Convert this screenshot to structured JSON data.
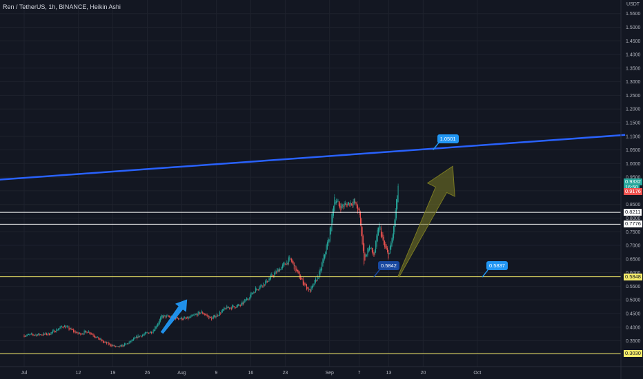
{
  "header": {
    "symbol_title": "Ren / TetherUS, 1h, BINANCE, Heikin Ashi",
    "currency": "USDT"
  },
  "colors": {
    "background": "#131722",
    "grid": "#1e222d",
    "up": "#26a69a",
    "down": "#ef5350",
    "trendline": "#2962ff",
    "white_line": "#ffffff",
    "yellow_line": "#f5ec6a",
    "arrow_blue": "#2196f3",
    "arrow_olive": "#7a7a22",
    "callout_blue": "#2196f3",
    "callout_navy": "#1848a0",
    "last_price_teal": "#26a69a",
    "last_price_red": "#ef5350"
  },
  "chart_data": {
    "type": "candlestick",
    "style": "Heikin Ashi",
    "interval": "1h",
    "exchange": "BINANCE",
    "y_axis": {
      "ticks": [
        "0.3000",
        "0.3500",
        "0.4000",
        "0.4500",
        "0.5000",
        "0.5500",
        "0.6000",
        "0.6500",
        "0.7000",
        "0.7500",
        "0.8000",
        "0.8500",
        "0.9000",
        "0.9500",
        "1.0000",
        "1.0500",
        "1.1000",
        "1.1500",
        "1.2000",
        "1.2500",
        "1.3000",
        "1.3500",
        "1.4000",
        "1.4500",
        "1.5000",
        "1.5500"
      ],
      "range": [
        0.27,
        1.58
      ]
    },
    "x_axis": {
      "ticks": [
        "Jul",
        "12",
        "19",
        "26",
        "Aug",
        "9",
        "16",
        "23",
        "Sep",
        "7",
        "13",
        "20",
        "Oct"
      ]
    },
    "price_path": [
      {
        "date": "2021-07-01",
        "price": 0.37
      },
      {
        "date": "2021-07-06",
        "price": 0.375
      },
      {
        "date": "2021-07-09",
        "price": 0.405
      },
      {
        "date": "2021-07-12",
        "price": 0.375
      },
      {
        "date": "2021-07-14",
        "price": 0.385
      },
      {
        "date": "2021-07-17",
        "price": 0.345
      },
      {
        "date": "2021-07-20",
        "price": 0.325
      },
      {
        "date": "2021-07-22",
        "price": 0.34
      },
      {
        "date": "2021-07-24",
        "price": 0.365
      },
      {
        "date": "2021-07-27",
        "price": 0.385
      },
      {
        "date": "2021-07-29",
        "price": 0.44
      },
      {
        "date": "2021-08-03",
        "price": 0.43
      },
      {
        "date": "2021-08-06",
        "price": 0.455
      },
      {
        "date": "2021-08-08",
        "price": 0.43
      },
      {
        "date": "2021-08-11",
        "price": 0.47
      },
      {
        "date": "2021-08-14",
        "price": 0.48
      },
      {
        "date": "2021-08-17",
        "price": 0.54
      },
      {
        "date": "2021-08-19",
        "price": 0.565
      },
      {
        "date": "2021-08-21",
        "price": 0.6
      },
      {
        "date": "2021-08-24",
        "price": 0.65
      },
      {
        "date": "2021-08-26",
        "price": 0.58
      },
      {
        "date": "2021-08-28",
        "price": 0.53
      },
      {
        "date": "2021-08-30",
        "price": 0.6
      },
      {
        "date": "2021-09-01",
        "price": 0.74
      },
      {
        "date": "2021-09-02",
        "price": 0.88
      },
      {
        "date": "2021-09-03",
        "price": 0.84
      },
      {
        "date": "2021-09-05",
        "price": 0.855
      },
      {
        "date": "2021-09-06",
        "price": 0.86
      },
      {
        "date": "2021-09-07",
        "price": 0.82
      },
      {
        "date": "2021-09-08",
        "price": 0.64
      },
      {
        "date": "2021-09-09",
        "price": 0.7
      },
      {
        "date": "2021-09-10",
        "price": 0.66
      },
      {
        "date": "2021-09-11",
        "price": 0.78
      },
      {
        "date": "2021-09-12",
        "price": 0.7
      },
      {
        "date": "2021-09-13",
        "price": 0.66
      },
      {
        "date": "2021-09-14",
        "price": 0.76
      },
      {
        "date": "2021-09-15",
        "price": 0.93
      }
    ],
    "lines": [
      {
        "name": "trendline",
        "kind": "trend",
        "from": {
          "date": "2021-06-23",
          "price": 0.937
        },
        "to": {
          "date": "2021-10-31",
          "price": 1.105
        },
        "color": "#2962ff"
      },
      {
        "name": "resistance-1",
        "kind": "horizontal",
        "price": 0.8211,
        "color": "#ffffff"
      },
      {
        "name": "resistance-2",
        "kind": "horizontal",
        "price": 0.7776,
        "color": "#ffffff"
      },
      {
        "name": "support",
        "kind": "horizontal",
        "price": 0.5848,
        "color": "#f5ec6a"
      },
      {
        "name": "low-support",
        "kind": "horizontal",
        "price": 0.303,
        "color": "#f5ec6a"
      }
    ],
    "arrows": [
      {
        "name": "rally-arrow",
        "from": {
          "date": "2021-07-29",
          "price": 0.38
        },
        "to": {
          "date": "2021-08-03",
          "price": 0.5
        },
        "color": "#2196f3"
      },
      {
        "name": "target-arrow",
        "from": {
          "date": "2021-09-15",
          "price": 0.585
        },
        "to": {
          "date": "2021-09-26",
          "price": 0.99
        },
        "color": "#7a7a22"
      }
    ],
    "callouts": [
      {
        "name": "callout-1-0501",
        "text": "1.0501",
        "date": "2021-09-22",
        "price": 1.0501,
        "color": "#2196f3"
      },
      {
        "name": "callout-0-5837",
        "text": "0.5837",
        "date": "2021-10-02",
        "price": 0.5837,
        "color": "#2196f3"
      },
      {
        "name": "callout-0-5842",
        "text": "0.5842",
        "date": "2021-09-10",
        "price": 0.5842,
        "color": "#1848a0"
      }
    ],
    "price_tags": [
      {
        "name": "last-price-tag",
        "text": "0.9332",
        "price": 0.9332,
        "bg": "#26a69a",
        "fg": "#ffffff"
      },
      {
        "name": "countdown-tag",
        "text": "16:50",
        "price": 0.913,
        "bg": "#26a69a",
        "fg": "#ffffff"
      },
      {
        "name": "low-price-tag",
        "text": "0.9176",
        "price": 0.8965,
        "bg": "#ef5350",
        "fg": "#ffffff"
      },
      {
        "name": "resistance-1-tag",
        "text": "0.8211",
        "price": 0.8211,
        "bg": "#ffffff",
        "fg": "#131722"
      },
      {
        "name": "resistance-2-tag",
        "text": "0.7776",
        "price": 0.7776,
        "bg": "#ffffff",
        "fg": "#131722"
      },
      {
        "name": "support-tag",
        "text": "0.5848",
        "price": 0.5848,
        "bg": "#f5ec6a",
        "fg": "#131722"
      },
      {
        "name": "low-support-tag",
        "text": "0.3030",
        "price": 0.303,
        "bg": "#f5ec6a",
        "fg": "#131722"
      }
    ]
  }
}
